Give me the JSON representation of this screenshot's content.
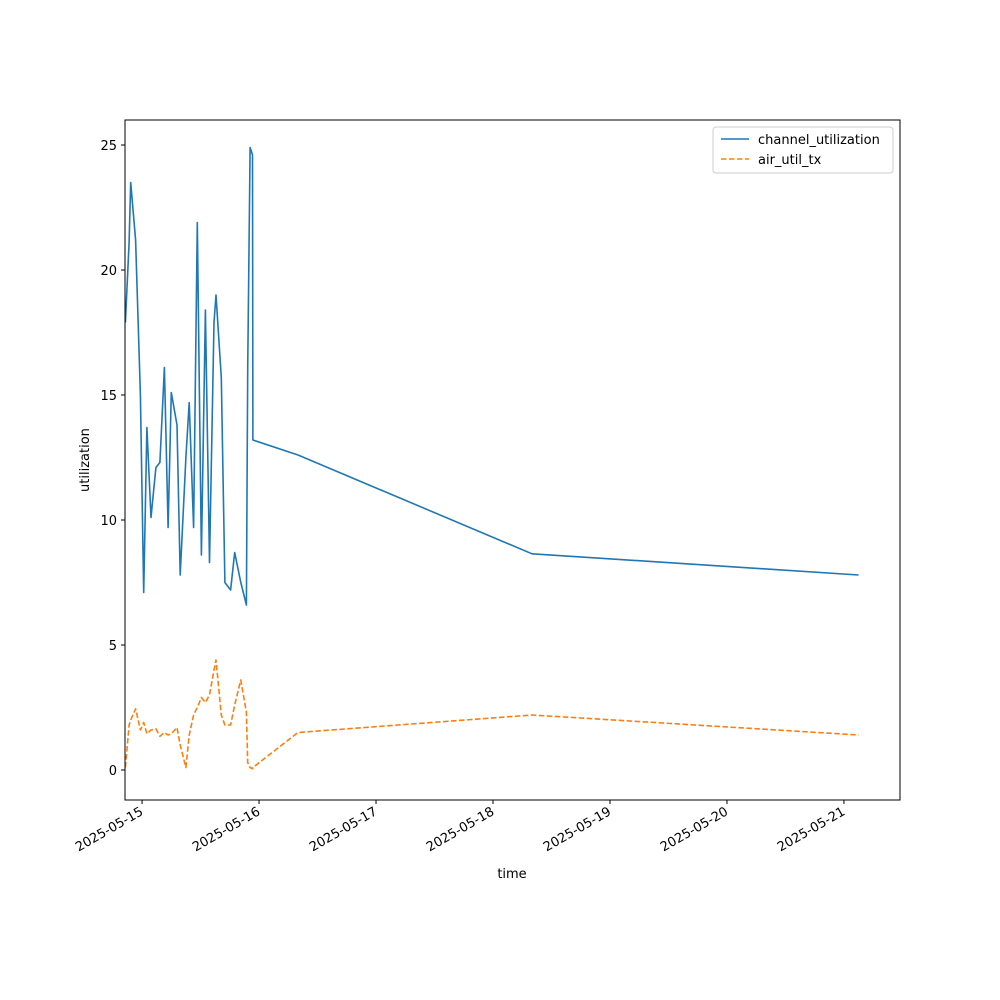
{
  "chart_data": {
    "type": "line",
    "title": "",
    "xlabel": "time",
    "ylabel": "utilization",
    "x_type": "datetime",
    "xlim": [
      "2025-05-14T20:30",
      "2025-05-21T11:30"
    ],
    "ylim": [
      -1.2,
      26
    ],
    "x_ticks": [
      "2025-05-15",
      "2025-05-16",
      "2025-05-17",
      "2025-05-18",
      "2025-05-19",
      "2025-05-20",
      "2025-05-21"
    ],
    "y_ticks": [
      0,
      5,
      10,
      15,
      20,
      25
    ],
    "grid": false,
    "legend_position": "top-right",
    "series": [
      {
        "name": "channel_utilization",
        "color": "#1f77b4",
        "style": "solid",
        "points": [
          [
            "2025-05-14T20:35",
            17.9
          ],
          [
            "2025-05-14T21:20",
            21.1
          ],
          [
            "2025-05-14T21:40",
            23.5
          ],
          [
            "2025-05-14T22:40",
            21.2
          ],
          [
            "2025-05-14T23:40",
            15.0
          ],
          [
            "2025-05-15T00:20",
            7.1
          ],
          [
            "2025-05-15T01:00",
            13.7
          ],
          [
            "2025-05-15T01:50",
            10.1
          ],
          [
            "2025-05-15T02:50",
            12.1
          ],
          [
            "2025-05-15T03:40",
            12.3
          ],
          [
            "2025-05-15T04:35",
            16.1
          ],
          [
            "2025-05-15T05:20",
            9.7
          ],
          [
            "2025-05-15T06:00",
            15.1
          ],
          [
            "2025-05-15T07:10",
            13.8
          ],
          [
            "2025-05-15T07:50",
            7.8
          ],
          [
            "2025-05-15T09:00",
            12.5
          ],
          [
            "2025-05-15T09:40",
            14.7
          ],
          [
            "2025-05-15T10:35",
            9.7
          ],
          [
            "2025-05-15T11:20",
            21.9
          ],
          [
            "2025-05-15T12:10",
            8.6
          ],
          [
            "2025-05-15T13:00",
            18.4
          ],
          [
            "2025-05-15T13:50",
            8.3
          ],
          [
            "2025-05-15T14:45",
            17.9
          ],
          [
            "2025-05-15T15:10",
            19.0
          ],
          [
            "2025-05-15T16:15",
            15.7
          ],
          [
            "2025-05-15T17:00",
            7.5
          ],
          [
            "2025-05-15T18:10",
            7.2
          ],
          [
            "2025-05-15T19:00",
            8.7
          ],
          [
            "2025-05-15T20:15",
            7.5
          ],
          [
            "2025-05-15T21:25",
            6.6
          ],
          [
            "2025-05-15T21:40",
            16.0
          ],
          [
            "2025-05-15T22:10",
            24.9
          ],
          [
            "2025-05-15T22:40",
            24.6
          ],
          [
            "2025-05-15T22:45",
            13.2
          ],
          [
            "2025-05-16T08:00",
            12.6
          ],
          [
            "2025-05-18T08:00",
            8.65
          ],
          [
            "2025-05-21T03:00",
            7.8
          ]
        ]
      },
      {
        "name": "air_util_tx",
        "color": "#ff7f0e",
        "style": "dashed",
        "points": [
          [
            "2025-05-14T20:35",
            0.1
          ],
          [
            "2025-05-14T21:20",
            1.8
          ],
          [
            "2025-05-14T21:40",
            2.0
          ],
          [
            "2025-05-14T22:40",
            2.45
          ],
          [
            "2025-05-14T23:40",
            1.6
          ],
          [
            "2025-05-15T00:20",
            1.9
          ],
          [
            "2025-05-15T01:00",
            1.45
          ],
          [
            "2025-05-15T01:50",
            1.6
          ],
          [
            "2025-05-15T02:50",
            1.65
          ],
          [
            "2025-05-15T03:40",
            1.35
          ],
          [
            "2025-05-15T04:35",
            1.5
          ],
          [
            "2025-05-15T05:20",
            1.4
          ],
          [
            "2025-05-15T06:00",
            1.45
          ],
          [
            "2025-05-15T07:10",
            1.7
          ],
          [
            "2025-05-15T07:50",
            1.0
          ],
          [
            "2025-05-15T09:00",
            0.1
          ],
          [
            "2025-05-15T09:40",
            1.4
          ],
          [
            "2025-05-15T10:35",
            2.2
          ],
          [
            "2025-05-15T11:20",
            2.5
          ],
          [
            "2025-05-15T12:10",
            2.9
          ],
          [
            "2025-05-15T13:00",
            2.7
          ],
          [
            "2025-05-15T13:50",
            3.0
          ],
          [
            "2025-05-15T14:45",
            4.0
          ],
          [
            "2025-05-15T15:10",
            4.4
          ],
          [
            "2025-05-15T16:15",
            2.2
          ],
          [
            "2025-05-15T17:00",
            1.8
          ],
          [
            "2025-05-15T18:10",
            1.8
          ],
          [
            "2025-05-15T19:00",
            2.6
          ],
          [
            "2025-05-15T20:15",
            3.6
          ],
          [
            "2025-05-15T21:25",
            2.3
          ],
          [
            "2025-05-15T21:40",
            0.3
          ],
          [
            "2025-05-15T22:10",
            0.1
          ],
          [
            "2025-05-15T22:40",
            0.05
          ],
          [
            "2025-05-15T22:45",
            0.1
          ],
          [
            "2025-05-16T08:00",
            1.5
          ],
          [
            "2025-05-18T08:00",
            2.2
          ],
          [
            "2025-05-21T03:00",
            1.4
          ]
        ]
      }
    ]
  }
}
